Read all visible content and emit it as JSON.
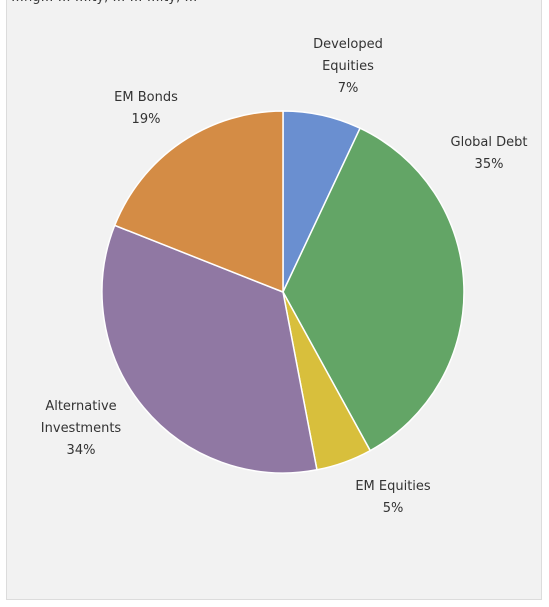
{
  "chart_data": {
    "type": "pie",
    "title": "…ng… … …ity, … … …ity, …",
    "categories": [
      "Developed Equities",
      "Global Debt",
      "EM Equities",
      "Alternative Investments",
      "EM Bonds"
    ],
    "values": [
      7,
      35,
      5,
      34,
      19
    ],
    "value_labels": [
      "7%",
      "35%",
      "5%",
      "34%",
      "19%"
    ],
    "label_lines": [
      [
        "Developed",
        "Equities"
      ],
      [
        "Global Debt"
      ],
      [
        "EM Equities"
      ],
      [
        "Alternative",
        "Investments"
      ],
      [
        "EM Bonds"
      ]
    ],
    "colors": [
      "#6a8fd0",
      "#63a566",
      "#d8bf3c",
      "#9078a3",
      "#d48c45"
    ],
    "start_angle_deg": 0,
    "direction": "clockwise",
    "legend": "none"
  }
}
